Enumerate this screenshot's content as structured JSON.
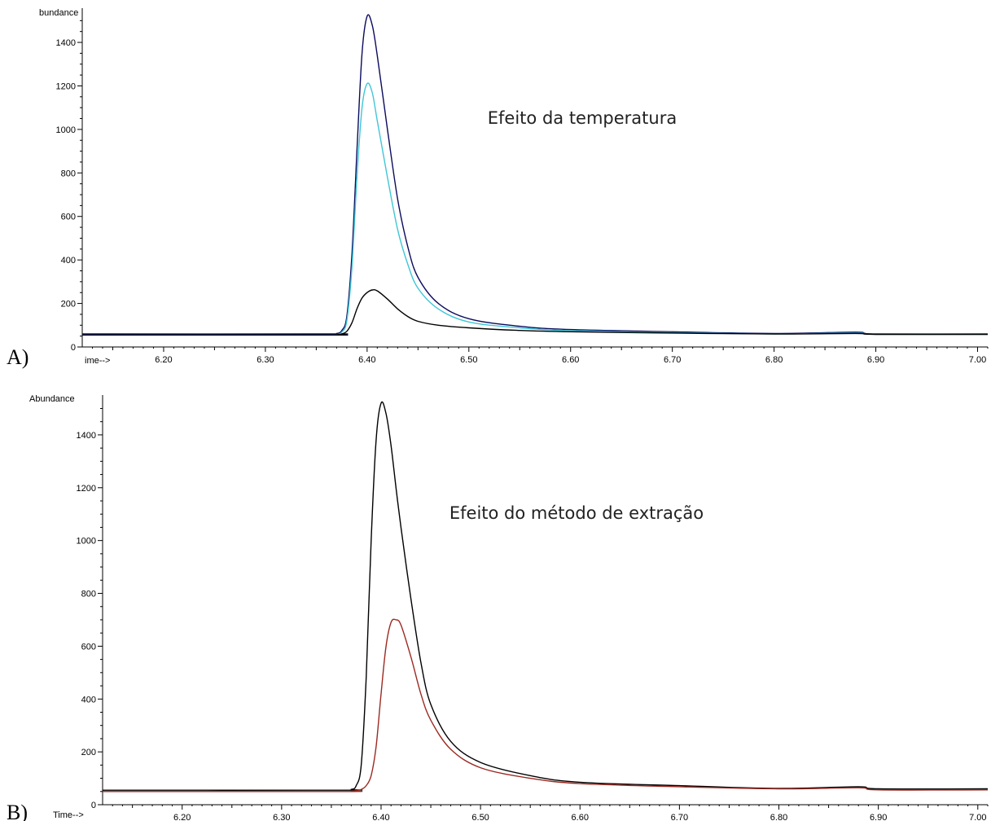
{
  "chart_data": [
    {
      "type": "line",
      "panel_label": "A)",
      "ylabel": "bundance",
      "xlabel": "ime-->",
      "annotation": "Efeito da temperatura",
      "xlim": [
        6.12,
        7.01
      ],
      "ylim": [
        0,
        1520
      ],
      "xticks": [
        "6.20",
        "6.30",
        "6.40",
        "6.50",
        "6.60",
        "6.70",
        "6.80",
        "6.90",
        "7.00"
      ],
      "yticks": [
        "0",
        "200",
        "400",
        "600",
        "800",
        "1000",
        "1200",
        "1400"
      ],
      "x": [
        6.12,
        6.36,
        6.37,
        6.375,
        6.38,
        6.385,
        6.39,
        6.395,
        6.4,
        6.405,
        6.41,
        6.42,
        6.43,
        6.44,
        6.45,
        6.47,
        6.5,
        6.55,
        6.6,
        6.7,
        6.8,
        6.88,
        6.9,
        7.01
      ],
      "series": [
        {
          "color": "#0b0b5e",
          "values": [
            60,
            60,
            62,
            75,
            140,
            420,
            900,
            1350,
            1520,
            1480,
            1340,
            1000,
            680,
            460,
            320,
            200,
            130,
            95,
            80,
            70,
            62,
            68,
            60,
            60
          ]
        },
        {
          "color": "#3fc6d6",
          "values": [
            55,
            55,
            57,
            68,
            120,
            360,
            780,
            1100,
            1210,
            1170,
            1040,
            780,
            540,
            380,
            270,
            175,
            115,
            88,
            75,
            66,
            60,
            64,
            58,
            58
          ]
        },
        {
          "color": "#000000",
          "values": [
            55,
            55,
            56,
            60,
            72,
            110,
            175,
            225,
            250,
            262,
            258,
            220,
            175,
            140,
            118,
            100,
            88,
            76,
            70,
            64,
            60,
            62,
            58,
            58
          ]
        }
      ]
    },
    {
      "type": "line",
      "panel_label": "B)",
      "ylabel": "Abundance",
      "xlabel": "Time-->",
      "annotation": "Efeito do método de extração",
      "xlim": [
        6.12,
        7.01
      ],
      "ylim": [
        0,
        1520
      ],
      "xticks": [
        "6.20",
        "6.30",
        "6.40",
        "6.50",
        "6.60",
        "6.70",
        "6.80",
        "6.90",
        "7.00"
      ],
      "yticks": [
        "0",
        "200",
        "400",
        "600",
        "800",
        "1000",
        "1200",
        "1400"
      ],
      "x": [
        6.12,
        6.36,
        6.37,
        6.375,
        6.38,
        6.385,
        6.39,
        6.395,
        6.4,
        6.405,
        6.41,
        6.415,
        6.42,
        6.43,
        6.44,
        6.45,
        6.47,
        6.5,
        6.55,
        6.6,
        6.7,
        6.8,
        6.88,
        6.9,
        7.01
      ],
      "series": [
        {
          "color": "#000000",
          "values": [
            55,
            55,
            58,
            72,
            150,
            480,
            1000,
            1380,
            1520,
            1480,
            1360,
            1200,
            1050,
            780,
            540,
            380,
            240,
            160,
            110,
            85,
            72,
            62,
            68,
            60,
            60
          ]
        },
        {
          "color": "#9b2a22",
          "values": [
            50,
            50,
            51,
            53,
            58,
            72,
            110,
            220,
            420,
            600,
            690,
            700,
            680,
            560,
            420,
            320,
            210,
            140,
            100,
            80,
            68,
            60,
            64,
            56,
            56
          ]
        }
      ]
    }
  ]
}
